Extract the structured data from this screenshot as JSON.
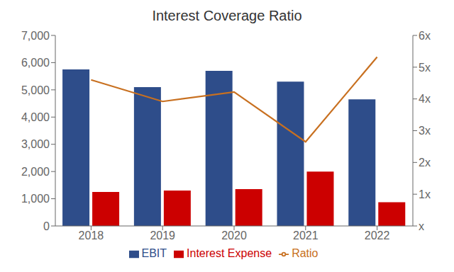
{
  "chart_data": {
    "type": "bar",
    "title": "Interest Coverage Ratio",
    "categories": [
      "2018",
      "2019",
      "2020",
      "2021",
      "2022"
    ],
    "series": [
      {
        "name": "EBIT",
        "color": "#2E4D8A",
        "values": [
          5750,
          5100,
          5700,
          5300,
          4650
        ]
      },
      {
        "name": "Interest Expense",
        "color": "#CC0000",
        "values": [
          1250,
          1300,
          1350,
          2000,
          875
        ]
      },
      {
        "name": "Ratio",
        "type": "line",
        "axis": "y2",
        "color": "#C87020",
        "values": [
          4.6,
          3.92,
          4.22,
          2.65,
          5.32
        ]
      }
    ],
    "ylim": [
      0,
      7000
    ],
    "yticks": [
      0,
      {
        "value": 1000,
        "label": "1,000"
      },
      {
        "value": 2000,
        "label": "2,000"
      },
      {
        "value": 3000,
        "label": "3,000"
      },
      {
        "value": 4000,
        "label": "4,000"
      },
      {
        "value": 5000,
        "label": "5,000"
      },
      {
        "value": 6000,
        "label": "6,000"
      },
      {
        "value": 7000,
        "label": "7,000"
      }
    ],
    "y2lim": [
      0,
      6
    ],
    "y2ticks": [
      {
        "value": 0,
        "label": "x"
      },
      {
        "value": 1,
        "label": "1x"
      },
      {
        "value": 2,
        "label": "2x"
      },
      {
        "value": 3,
        "label": "3x"
      },
      {
        "value": 4,
        "label": "4x"
      },
      {
        "value": 5,
        "label": "5x"
      },
      {
        "value": 6,
        "label": "6x"
      }
    ],
    "grid": false,
    "legend": "bottom"
  }
}
